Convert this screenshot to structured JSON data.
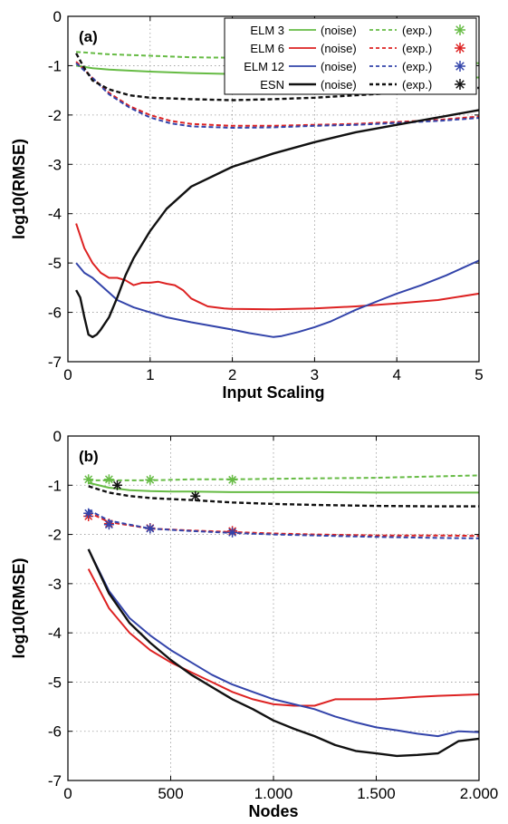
{
  "chart_data": [
    {
      "type": "line",
      "panel_label": "(a)",
      "xlabel": "Input Scaling",
      "ylabel": "log10(RMSE)",
      "xlim": [
        0,
        5
      ],
      "ylim": [
        -7,
        0
      ],
      "xticks": [
        "0",
        "1",
        "2",
        "3",
        "4",
        "5"
      ],
      "yticks": [
        "0",
        "-1",
        "-2",
        "-3",
        "-4",
        "-5",
        "-6",
        "-7"
      ],
      "grid": true,
      "legend": {
        "placement": "top-right",
        "rows": [
          {
            "model": "ELM 3",
            "noise_label": "(noise)",
            "exp_label": "(exp.)",
            "color": "#66bb44",
            "marker": "*"
          },
          {
            "model": "ELM 6",
            "noise_label": "(noise)",
            "exp_label": "(exp.)",
            "color": "#dd2222",
            "marker": "*"
          },
          {
            "model": "ELM 12",
            "noise_label": "(noise)",
            "exp_label": "(exp.)",
            "color": "#3344aa",
            "marker": "*"
          },
          {
            "model": "ESN",
            "noise_label": "(noise)",
            "exp_label": "(exp.)",
            "color": "#111111",
            "marker": "*"
          }
        ]
      },
      "series": [
        {
          "model": "ELM 3",
          "kind": "noise",
          "color": "#66bb44",
          "dashed": false,
          "x": [
            0.1,
            0.3,
            0.5,
            1.0,
            1.5,
            2.0,
            2.5,
            3.0,
            3.5,
            4.0,
            4.5,
            5.0
          ],
          "y": [
            -1.0,
            -1.05,
            -1.08,
            -1.12,
            -1.15,
            -1.17,
            -1.19,
            -1.2,
            -1.21,
            -1.22,
            -1.23,
            -1.24
          ]
        },
        {
          "model": "ELM 3",
          "kind": "exp",
          "color": "#66bb44",
          "dashed": true,
          "x": [
            0.1,
            0.5,
            1.0,
            1.5,
            2.0,
            2.5,
            3.0,
            3.5,
            4.0,
            4.5,
            5.0
          ],
          "y": [
            -0.72,
            -0.77,
            -0.8,
            -0.83,
            -0.84,
            -0.86,
            -0.87,
            -0.89,
            -0.9,
            -0.92,
            -0.95
          ]
        },
        {
          "model": "ELM 6",
          "kind": "noise",
          "color": "#dd2222",
          "dashed": false,
          "x": [
            0.1,
            0.2,
            0.3,
            0.4,
            0.5,
            0.6,
            0.7,
            0.8,
            0.9,
            1.0,
            1.1,
            1.2,
            1.3,
            1.4,
            1.5,
            1.6,
            1.7,
            1.8,
            1.9,
            2.0,
            2.5,
            3.0,
            3.5,
            4.0,
            4.5,
            5.0
          ],
          "y": [
            -4.2,
            -4.7,
            -5.0,
            -5.2,
            -5.3,
            -5.3,
            -5.35,
            -5.45,
            -5.4,
            -5.4,
            -5.38,
            -5.42,
            -5.45,
            -5.55,
            -5.72,
            -5.8,
            -5.88,
            -5.9,
            -5.92,
            -5.93,
            -5.94,
            -5.92,
            -5.88,
            -5.82,
            -5.75,
            -5.62
          ]
        },
        {
          "model": "ELM 6",
          "kind": "exp",
          "color": "#dd2222",
          "dashed": true,
          "x": [
            0.1,
            0.3,
            0.5,
            0.75,
            1.0,
            1.25,
            1.5,
            2.0,
            2.5,
            3.0,
            3.5,
            4.0,
            4.5,
            5.0
          ],
          "y": [
            -0.92,
            -1.25,
            -1.55,
            -1.82,
            -2.0,
            -2.12,
            -2.18,
            -2.22,
            -2.22,
            -2.2,
            -2.18,
            -2.14,
            -2.1,
            -2.03
          ]
        },
        {
          "model": "ELM 12",
          "kind": "noise",
          "color": "#3344aa",
          "dashed": false,
          "x": [
            0.1,
            0.2,
            0.3,
            0.4,
            0.5,
            0.6,
            0.8,
            1.0,
            1.2,
            1.5,
            2.0,
            2.2,
            2.5,
            2.6,
            2.8,
            3.0,
            3.2,
            3.5,
            3.8,
            4.0,
            4.3,
            4.6,
            5.0
          ],
          "y": [
            -5.0,
            -5.2,
            -5.3,
            -5.45,
            -5.6,
            -5.75,
            -5.9,
            -6.0,
            -6.1,
            -6.2,
            -6.35,
            -6.42,
            -6.5,
            -6.48,
            -6.4,
            -6.3,
            -6.18,
            -5.95,
            -5.75,
            -5.62,
            -5.45,
            -5.25,
            -4.95
          ]
        },
        {
          "model": "ELM 12",
          "kind": "exp",
          "color": "#3344aa",
          "dashed": true,
          "x": [
            0.1,
            0.3,
            0.5,
            0.75,
            1.0,
            1.25,
            1.5,
            2.0,
            2.5,
            3.0,
            3.5,
            4.0,
            4.5,
            5.0
          ],
          "y": [
            -0.95,
            -1.25,
            -1.58,
            -1.85,
            -2.05,
            -2.17,
            -2.23,
            -2.26,
            -2.25,
            -2.22,
            -2.2,
            -2.16,
            -2.12,
            -2.06
          ]
        },
        {
          "model": "ESN",
          "kind": "noise",
          "color": "#111111",
          "dashed": false,
          "x": [
            0.1,
            0.15,
            0.2,
            0.25,
            0.3,
            0.35,
            0.4,
            0.5,
            0.6,
            0.7,
            0.8,
            1.0,
            1.2,
            1.5,
            2.0,
            2.5,
            3.0,
            3.5,
            4.0,
            4.5,
            5.0
          ],
          "y": [
            -5.55,
            -5.7,
            -6.1,
            -6.45,
            -6.5,
            -6.45,
            -6.35,
            -6.1,
            -5.7,
            -5.25,
            -4.9,
            -4.35,
            -3.9,
            -3.45,
            -3.05,
            -2.78,
            -2.55,
            -2.35,
            -2.2,
            -2.05,
            -1.9
          ]
        },
        {
          "model": "ESN",
          "kind": "exp",
          "color": "#111111",
          "dashed": true,
          "x": [
            0.1,
            0.2,
            0.3,
            0.5,
            0.75,
            1.0,
            1.5,
            2.0,
            2.5,
            3.0,
            3.5,
            4.0,
            4.5,
            5.0
          ],
          "y": [
            -0.75,
            -1.05,
            -1.3,
            -1.48,
            -1.6,
            -1.65,
            -1.68,
            -1.7,
            -1.68,
            -1.65,
            -1.6,
            -1.55,
            -1.5,
            -1.45
          ]
        }
      ]
    },
    {
      "type": "line",
      "panel_label": "(b)",
      "xlabel": "Nodes",
      "ylabel": "log10(RMSE)",
      "xlim": [
        0,
        2000
      ],
      "ylim": [
        -7,
        0
      ],
      "xticks": [
        "0",
        "500",
        "1.000",
        "1.500",
        "2.000"
      ],
      "yticks": [
        "0",
        "-1",
        "-2",
        "-3",
        "-4",
        "-5",
        "-6",
        "-7"
      ],
      "grid": true,
      "series": [
        {
          "model": "ELM 3",
          "kind": "noise",
          "color": "#66bb44",
          "dashed": false,
          "x": [
            100,
            200,
            300,
            400,
            500,
            600,
            800,
            1000,
            1200,
            1500,
            1800,
            2000
          ],
          "y": [
            -0.95,
            -1.05,
            -1.1,
            -1.12,
            -1.13,
            -1.13,
            -1.14,
            -1.14,
            -1.14,
            -1.15,
            -1.15,
            -1.15
          ]
        },
        {
          "model": "ELM 3",
          "kind": "exp",
          "color": "#66bb44",
          "dashed": true,
          "x": [
            100,
            200,
            400,
            600,
            800,
            1000,
            1200,
            1500,
            1800,
            2000
          ],
          "y": [
            -0.9,
            -0.9,
            -0.9,
            -0.88,
            -0.88,
            -0.87,
            -0.86,
            -0.85,
            -0.82,
            -0.8
          ]
        },
        {
          "model": "ELM 3",
          "kind": "exp-markers",
          "color": "#66bb44",
          "marker": "*",
          "x": [
            100,
            200,
            400,
            800
          ],
          "y": [
            -0.88,
            -0.88,
            -0.89,
            -0.89
          ]
        },
        {
          "model": "ELM 6",
          "kind": "noise",
          "color": "#dd2222",
          "dashed": false,
          "x": [
            100,
            200,
            300,
            400,
            500,
            600,
            700,
            800,
            900,
            1000,
            1100,
            1200,
            1300,
            1400,
            1500,
            1600,
            1700,
            1800,
            2000
          ],
          "y": [
            -2.7,
            -3.5,
            -4.0,
            -4.35,
            -4.6,
            -4.8,
            -5.0,
            -5.2,
            -5.35,
            -5.45,
            -5.48,
            -5.48,
            -5.35,
            -5.35,
            -5.35,
            -5.33,
            -5.3,
            -5.28,
            -5.25
          ]
        },
        {
          "model": "ELM 6",
          "kind": "exp",
          "color": "#dd2222",
          "dashed": true,
          "x": [
            100,
            200,
            400,
            600,
            800,
            1000,
            1200,
            1500,
            1800,
            2000
          ],
          "y": [
            -1.55,
            -1.75,
            -1.88,
            -1.92,
            -1.95,
            -1.98,
            -2.0,
            -2.02,
            -2.02,
            -2.03
          ]
        },
        {
          "model": "ELM 6",
          "kind": "exp-markers",
          "color": "#dd2222",
          "marker": "*",
          "x": [
            100,
            200,
            400,
            800
          ],
          "y": [
            -1.63,
            -1.78,
            -1.87,
            -1.93
          ]
        },
        {
          "model": "ELM 12",
          "kind": "noise",
          "color": "#3344aa",
          "dashed": false,
          "x": [
            100,
            200,
            300,
            400,
            500,
            600,
            700,
            800,
            900,
            1000,
            1100,
            1200,
            1300,
            1400,
            1500,
            1600,
            1700,
            1800,
            1900,
            2000
          ],
          "y": [
            -2.3,
            -3.15,
            -3.7,
            -4.05,
            -4.35,
            -4.6,
            -4.85,
            -5.05,
            -5.2,
            -5.35,
            -5.45,
            -5.55,
            -5.7,
            -5.82,
            -5.92,
            -5.98,
            -6.05,
            -6.1,
            -6.0,
            -6.02
          ]
        },
        {
          "model": "ELM 12",
          "kind": "exp",
          "color": "#3344aa",
          "dashed": true,
          "x": [
            100,
            200,
            400,
            600,
            800,
            1000,
            1200,
            1500,
            1800,
            2000
          ],
          "y": [
            -1.5,
            -1.72,
            -1.88,
            -1.93,
            -1.97,
            -2.0,
            -2.02,
            -2.05,
            -2.07,
            -2.08
          ]
        },
        {
          "model": "ELM 12",
          "kind": "exp-markers",
          "color": "#3344aa",
          "marker": "*",
          "x": [
            100,
            200,
            400,
            800
          ],
          "y": [
            -1.57,
            -1.8,
            -1.88,
            -1.96
          ]
        },
        {
          "model": "ESN",
          "kind": "noise",
          "color": "#111111",
          "dashed": false,
          "x": [
            100,
            200,
            300,
            400,
            500,
            600,
            700,
            800,
            900,
            1000,
            1100,
            1200,
            1300,
            1400,
            1500,
            1600,
            1700,
            1800,
            1900,
            2000
          ],
          "y": [
            -2.3,
            -3.2,
            -3.8,
            -4.2,
            -4.55,
            -4.85,
            -5.1,
            -5.35,
            -5.55,
            -5.78,
            -5.95,
            -6.1,
            -6.28,
            -6.4,
            -6.45,
            -6.5,
            -6.48,
            -6.45,
            -6.2,
            -6.15
          ]
        },
        {
          "model": "ESN",
          "kind": "exp",
          "color": "#111111",
          "dashed": true,
          "x": [
            100,
            200,
            300,
            400,
            600,
            800,
            1000,
            1200,
            1500,
            1800,
            2000
          ],
          "y": [
            -1.02,
            -1.15,
            -1.22,
            -1.26,
            -1.3,
            -1.35,
            -1.38,
            -1.4,
            -1.42,
            -1.43,
            -1.43
          ]
        },
        {
          "model": "ESN",
          "kind": "exp-markers",
          "color": "#111111",
          "marker": "*",
          "x": [
            240,
            620
          ],
          "y": [
            -1.0,
            -1.22
          ]
        }
      ]
    }
  ]
}
